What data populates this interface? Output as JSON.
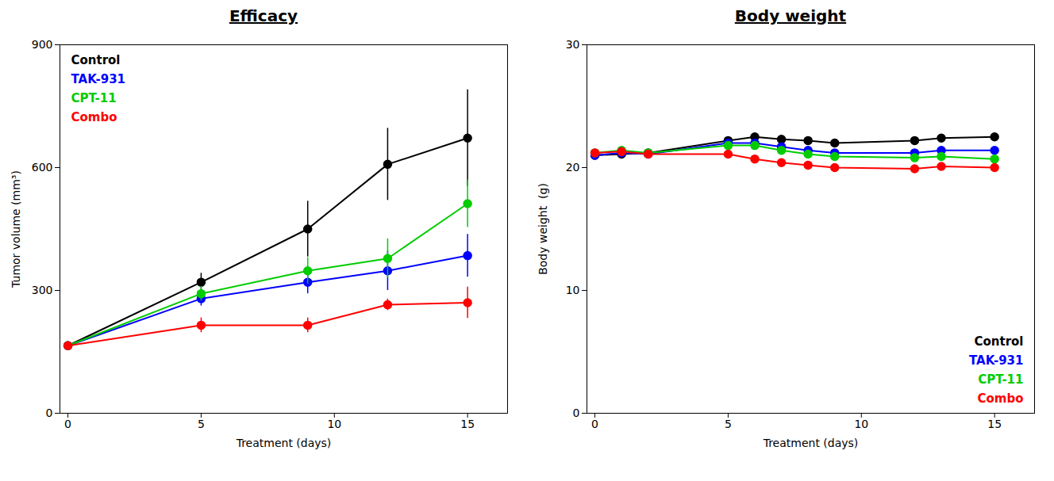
{
  "chart_data": [
    {
      "type": "line",
      "title": "Efficacy",
      "xlabel": "Treatment (days)",
      "ylabel": "Tumor volume (mm³)",
      "xlim": [
        -0.3,
        16.5
      ],
      "ylim": [
        0,
        900
      ],
      "xticks": [
        0,
        5,
        10,
        15
      ],
      "yticks": [
        0,
        300,
        600,
        900
      ],
      "grid": false,
      "legend": "upper left",
      "marker": "o",
      "x": [
        0,
        5,
        9,
        12,
        15
      ],
      "series": [
        {
          "name": "Control",
          "color": "#000000",
          "values": [
            165,
            320,
            450,
            608,
            672
          ],
          "yerr": [
            8,
            22,
            68,
            88,
            118
          ]
        },
        {
          "name": "TAK-931",
          "color": "#0000FF",
          "values": [
            165,
            280,
            320,
            348,
            385
          ],
          "yerr": [
            8,
            18,
            28,
            48,
            52
          ]
        },
        {
          "name": "CPT-11",
          "color": "#00CC00",
          "values": [
            165,
            292,
            348,
            378,
            512
          ],
          "yerr": [
            8,
            18,
            32,
            48,
            58
          ]
        },
        {
          "name": "Combo",
          "color": "#FF0000",
          "values": [
            165,
            215,
            215,
            265,
            270
          ],
          "yerr": [
            8,
            18,
            18,
            14,
            38
          ]
        }
      ]
    },
    {
      "type": "line",
      "title": "Body weight",
      "xlabel": "Treatment (days)",
      "ylabel": "Body weight  (g)",
      "xlim": [
        -0.3,
        16.5
      ],
      "ylim": [
        0,
        30
      ],
      "xticks": [
        0,
        5,
        10,
        15
      ],
      "yticks": [
        0,
        10,
        20,
        30
      ],
      "grid": false,
      "legend": "lower right",
      "marker": "o",
      "x": [
        0,
        1,
        2,
        5,
        6,
        7,
        8,
        9,
        12,
        13,
        15
      ],
      "series": [
        {
          "name": "Control",
          "color": "#000000",
          "values": [
            21.0,
            21.1,
            21.2,
            22.2,
            22.5,
            22.3,
            22.2,
            22.0,
            22.2,
            22.4,
            22.5
          ],
          "yerr": [
            0.15,
            0.15,
            0.15,
            0.2,
            0.2,
            0.2,
            0.2,
            0.2,
            0.2,
            0.2,
            0.2
          ]
        },
        {
          "name": "TAK-931",
          "color": "#0000FF",
          "values": [
            21.0,
            21.2,
            21.1,
            22.0,
            22.0,
            21.7,
            21.4,
            21.2,
            21.2,
            21.4,
            21.4
          ],
          "yerr": [
            0.15,
            0.15,
            0.15,
            0.2,
            0.2,
            0.2,
            0.2,
            0.2,
            0.2,
            0.2,
            0.2
          ]
        },
        {
          "name": "CPT-11",
          "color": "#00CC00",
          "values": [
            21.2,
            21.4,
            21.2,
            21.8,
            21.8,
            21.4,
            21.1,
            20.9,
            20.8,
            20.9,
            20.7
          ],
          "yerr": [
            0.15,
            0.15,
            0.15,
            0.2,
            0.2,
            0.2,
            0.2,
            0.2,
            0.2,
            0.2,
            0.2
          ]
        },
        {
          "name": "Combo",
          "color": "#FF0000",
          "values": [
            21.2,
            21.3,
            21.1,
            21.1,
            20.7,
            20.4,
            20.2,
            20.0,
            19.9,
            20.1,
            20.0
          ],
          "yerr": [
            0.15,
            0.15,
            0.15,
            0.2,
            0.2,
            0.2,
            0.2,
            0.2,
            0.2,
            0.2,
            0.2
          ]
        }
      ]
    }
  ]
}
